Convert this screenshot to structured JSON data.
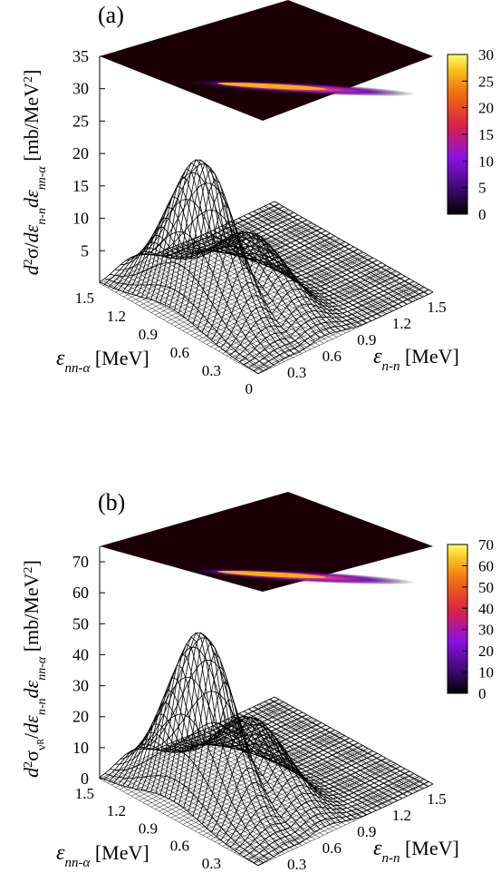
{
  "panels": [
    {
      "label": "(a)",
      "zlabel_latex": "d²σ/dε_{n-n}dε_{nn-α} [mb/MeV²]",
      "xlabel": "ε_{nn-α} [MeV]",
      "ylabel": "ε_{n-n} [MeV]",
      "z_ticks": [
        "5",
        "10",
        "15",
        "20",
        "25",
        "30",
        "35"
      ],
      "x_ticks": [
        "1.5",
        "1.2",
        "0.9",
        "0.6",
        "0.3",
        "0"
      ],
      "y_ticks": [
        "0.3",
        "0.6",
        "0.9",
        "1.2",
        "1.5"
      ],
      "colorbar_ticks": [
        "0",
        "5",
        "10",
        "15",
        "20",
        "25",
        "30"
      ],
      "zlim": [
        0,
        35
      ],
      "colorbar_range": [
        0,
        30
      ],
      "peak": 23
    },
    {
      "label": "(b)",
      "zlabel_latex": "d²σ_{ν_R}/dε_{n-n}dε_{nn-α} [mb/MeV²]",
      "xlabel": "ε_{nn-α} [MeV]",
      "ylabel": "ε_{n-n} [MeV]",
      "z_ticks": [
        "0",
        "10",
        "20",
        "30",
        "40",
        "50",
        "60",
        "70"
      ],
      "x_ticks": [
        "1.5",
        "1.2",
        "0.9",
        "0.6",
        "0.3",
        "0"
      ],
      "y_ticks": [
        "0.3",
        "0.6",
        "0.9",
        "1.2",
        "1.5"
      ],
      "colorbar_ticks": [
        "0",
        "10",
        "20",
        "30",
        "40",
        "50",
        "60",
        "70"
      ],
      "zlim": [
        0,
        75
      ],
      "colorbar_range": [
        0,
        70
      ],
      "peak": 55
    }
  ],
  "chart_data": [
    {
      "type": "surface3d",
      "label": "(a)",
      "x_axis": "ε_{nn-α} [MeV]",
      "y_axis": "ε_{n-n} [MeV]",
      "z_axis": "d²σ/dε_{n-n}dε_{nn-α} [mb/MeV²]",
      "xlim": [
        0,
        1.5
      ],
      "ylim": [
        0,
        1.5
      ],
      "zlim": [
        0,
        35
      ],
      "colormap": "gnuplot-pm3d",
      "colorbar": [
        0,
        30
      ],
      "surface_peak_value": 23,
      "shoulder_value": 11
    },
    {
      "type": "surface3d",
      "label": "(b)",
      "x_axis": "ε_{nn-α} [MeV]",
      "y_axis": "ε_{n-n} [MeV]",
      "z_axis": "d²σ_{ν_R}/dε_{n-n}dε_{nn-α} [mb/MeV²]",
      "xlim": [
        0,
        1.5
      ],
      "ylim": [
        0,
        1.5
      ],
      "zlim": [
        0,
        75
      ],
      "colormap": "gnuplot-pm3d",
      "colorbar": [
        0,
        70
      ],
      "surface_peak_value": 55,
      "shoulder_value": 21
    }
  ]
}
